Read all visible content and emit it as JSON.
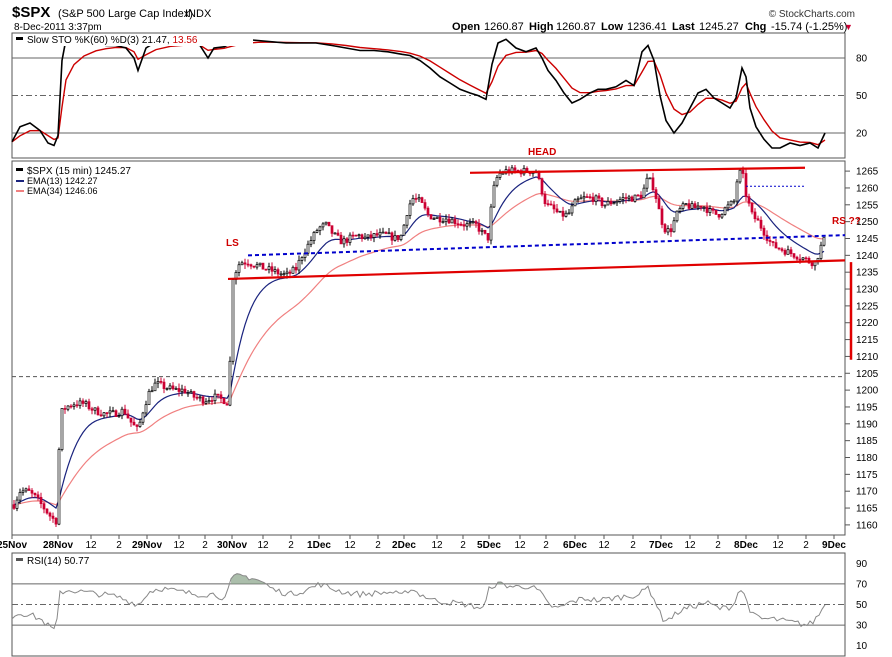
{
  "header": {
    "symbol": "$SPX",
    "name": "(S&P 500 Large Cap Index)",
    "exchange": "INDX",
    "date": "8-Dec-2011 3:37pm",
    "watermark": "© StockCharts.com",
    "open_label": "Open",
    "open": "1260.87",
    "high_label": "High",
    "high": "1260.87",
    "low_label": "Low",
    "low": "1236.41",
    "last_label": "Last",
    "last": "1245.27",
    "chg_label": "Chg",
    "chg": "-15.74 (-1.25%)",
    "chg_arrow": "▼"
  },
  "colors": {
    "price_up": "#000000",
    "price_down": "#cc0033",
    "ema13": "#1a237e",
    "ema34": "#f08080",
    "sto_k": "#000000",
    "sto_d": "#cc0000",
    "trendline": "#e00000",
    "neckline": "#0000cc",
    "rsi_line": "#888888",
    "rsi_fill": "#8fa88f"
  },
  "sto_panel": {
    "legend_prefix": "Slow STO %K(60) %D(3)",
    "k_value": "21.47",
    "d_value": "13.56",
    "levels": [
      "80",
      "50",
      "20"
    ]
  },
  "price_panel": {
    "legend_main": "$SPX (15 min) 1245.27",
    "legend_ema13": "EMA(13) 1242.27",
    "legend_ema34": "EMA(34) 1246.06",
    "annotations": {
      "head": "HEAD",
      "ls": "LS",
      "rs": "RS ??"
    },
    "y_ticks": [
      1265,
      1260,
      1255,
      1250,
      1245,
      1240,
      1235,
      1230,
      1225,
      1220,
      1215,
      1210,
      1205,
      1200,
      1195,
      1190,
      1185,
      1180,
      1175,
      1170,
      1165,
      1160
    ]
  },
  "rsi_panel": {
    "legend": "RSI(14) 50.77",
    "levels": [
      "90",
      "70",
      "50",
      "30",
      "10"
    ]
  },
  "x_axis": {
    "labels": [
      "25Nov",
      "28Nov",
      "12",
      "2",
      "29Nov",
      "12",
      "2",
      "30Nov",
      "12",
      "2",
      "1Dec",
      "12",
      "2",
      "2Dec",
      "12",
      "2",
      "5Dec",
      "12",
      "2",
      "6Dec",
      "12",
      "2",
      "7Dec",
      "12",
      "2",
      "8Dec",
      "12",
      "2",
      "9Dec"
    ]
  },
  "chart_data": {
    "type": "candlestick",
    "title": "$SPX (S&P 500 Large Cap Index) INDX",
    "interval": "15 min",
    "ylim": [
      1157,
      1268
    ],
    "sessions": [
      "25Nov",
      "28Nov",
      "29Nov",
      "30Nov",
      "1Dec",
      "2Dec",
      "5Dec",
      "6Dec",
      "7Dec",
      "8Dec"
    ],
    "approx_close_path": [
      {
        "t": "25Nov",
        "close": 1166
      },
      {
        "t": "28Nov open",
        "close": 1192
      },
      {
        "t": "28Nov",
        "close": 1194
      },
      {
        "t": "29Nov",
        "close": 1197
      },
      {
        "t": "30Nov open",
        "close": 1236
      },
      {
        "t": "30Nov",
        "close": 1238
      },
      {
        "t": "1Dec",
        "close": 1244
      },
      {
        "t": "2Dec",
        "close": 1246
      },
      {
        "t": "5Dec",
        "close": 1257
      },
      {
        "t": "6Dec",
        "close": 1258
      },
      {
        "t": "7Dec",
        "close": 1261
      },
      {
        "t": "8Dec",
        "close": 1245
      }
    ],
    "levels": {
      "upper_trendline": 1265,
      "lower_trendline": 1235,
      "neckline": 1242,
      "dotted_resistance": 1261,
      "dashed_level": 1204
    },
    "series": [
      {
        "name": "EMA(13)",
        "last": 1242.27
      },
      {
        "name": "EMA(34)",
        "last": 1246.06
      }
    ],
    "sto_k_last": 21.47,
    "sto_d_last": 13.56,
    "rsi_last": 50.77
  }
}
